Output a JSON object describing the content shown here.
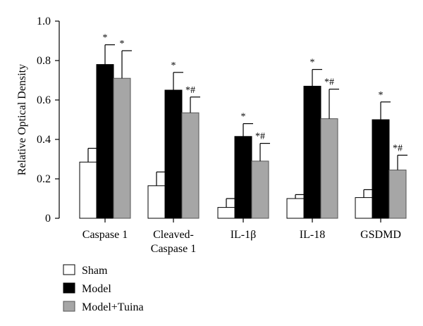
{
  "chart_data": {
    "type": "bar",
    "ylabel": "Relative Optical Density",
    "ylim": [
      0,
      1.0
    ],
    "yticks": [
      "0",
      "0.2",
      "0.4",
      "0.6",
      "0.8",
      "1.0"
    ],
    "categories": [
      [
        "Caspase 1"
      ],
      [
        "Cleaved-",
        "Caspase 1"
      ],
      [
        "IL-1β"
      ],
      [
        "IL-18"
      ],
      [
        "GSDMD"
      ]
    ],
    "series": [
      {
        "name": "Sham",
        "color": "#ffffff",
        "values": [
          0.285,
          0.165,
          0.055,
          0.1,
          0.105
        ],
        "errors": [
          0.07,
          0.07,
          0.045,
          0.02,
          0.04
        ],
        "markers": [
          "",
          "",
          "",
          "",
          ""
        ]
      },
      {
        "name": "Model",
        "color": "#000000",
        "values": [
          0.78,
          0.65,
          0.415,
          0.67,
          0.5
        ],
        "errors": [
          0.1,
          0.09,
          0.065,
          0.085,
          0.09
        ],
        "markers": [
          "*",
          "*",
          "*",
          "*",
          "*"
        ]
      },
      {
        "name": "Model+Tuina",
        "color": "#a6a6a6",
        "values": [
          0.71,
          0.535,
          0.29,
          0.505,
          0.245
        ],
        "errors": [
          0.14,
          0.08,
          0.09,
          0.15,
          0.075
        ],
        "markers": [
          "*",
          "*#",
          "*#",
          "*#",
          "*#"
        ]
      }
    ],
    "legend_position": "bottom-left",
    "grid": false
  }
}
